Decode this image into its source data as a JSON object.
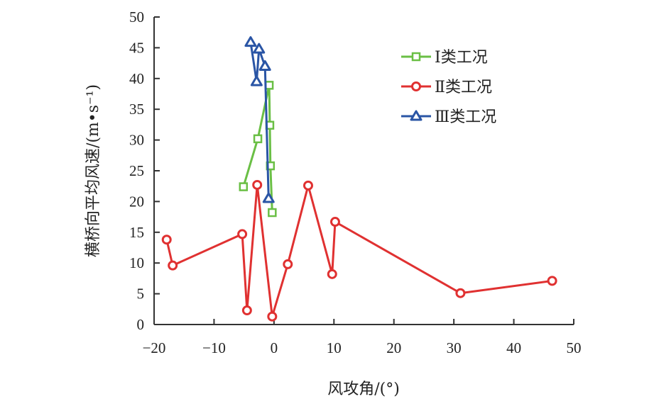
{
  "chart_data": {
    "type": "line",
    "title": "",
    "xlabel": "风攻角/(°)",
    "ylabel": "横桥向平均风速/(m•s⁻¹)",
    "xlim": [
      -20,
      50
    ],
    "ylim": [
      0,
      50
    ],
    "xticks": [
      -20,
      -10,
      0,
      10,
      20,
      30,
      40,
      50
    ],
    "yticks": [
      0,
      5,
      10,
      15,
      20,
      25,
      30,
      35,
      40,
      45,
      50
    ],
    "xtick_labels": [
      "−20",
      "−10",
      "0",
      "10",
      "20",
      "30",
      "40",
      "50"
    ],
    "ytick_labels": [
      "0",
      "5",
      "10",
      "15",
      "20",
      "25",
      "30",
      "35",
      "40",
      "45",
      "50"
    ],
    "grid": false,
    "legend_position": "top-right",
    "series": [
      {
        "name": "Ⅰ类工况",
        "color": "#6abf45",
        "marker": "square",
        "x": [
          -5.1,
          -2.7,
          -0.8,
          -0.7,
          -0.6,
          -0.3
        ],
        "y": [
          22.4,
          30.2,
          38.9,
          32.4,
          25.8,
          18.2
        ]
      },
      {
        "name": "Ⅱ类工况",
        "color": "#e03131",
        "marker": "circle",
        "x": [
          -17.9,
          -16.9,
          -5.3,
          -4.5,
          -2.8,
          -0.3,
          2.3,
          5.7,
          9.7,
          10.2,
          31.1,
          46.4
        ],
        "y": [
          13.8,
          9.6,
          14.7,
          2.3,
          22.7,
          1.3,
          9.8,
          22.6,
          8.2,
          16.7,
          5.1,
          7.1
        ]
      },
      {
        "name": "Ⅲ类工况",
        "color": "#2a55a5",
        "marker": "triangle",
        "x": [
          -3.9,
          -2.9,
          -2.5,
          -1.5,
          -0.9
        ],
        "y": [
          45.9,
          39.5,
          44.8,
          42.0,
          20.5
        ]
      }
    ]
  }
}
